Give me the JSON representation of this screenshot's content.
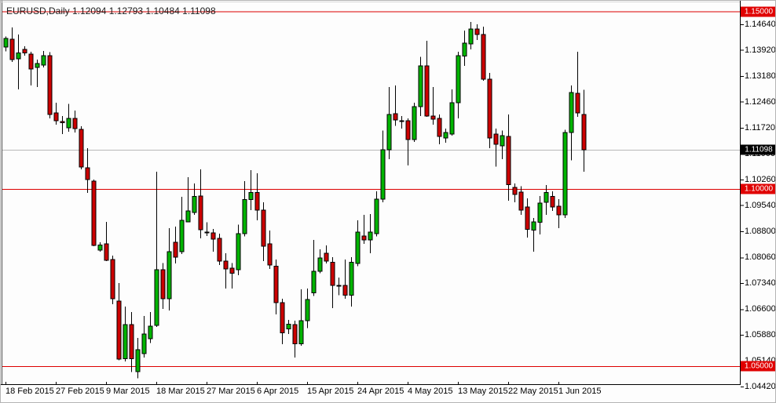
{
  "header": {
    "title": "EURUSD,Daily 1.12094 1.12793 1.10484 1.11098"
  },
  "colors": {
    "background": "#ffffff",
    "bull_body": "#00b400",
    "bear_body": "#cc0000",
    "candle_outline": "#000000",
    "wick": "#000000",
    "level_line_red": "#dd0000",
    "current_price_line": "#b8b8b8",
    "badge_red_bg": "#e00000",
    "badge_black_bg": "#000000",
    "badge_text": "#ffffff",
    "axis_line": "#000000",
    "axis_text": "#000000"
  },
  "chart_data": {
    "type": "candlestick",
    "title": "EURUSD,Daily 1.12094 1.12793 1.10484 1.11098",
    "symbol": "EURUSD",
    "timeframe": "Daily",
    "current_bar": {
      "open": "1.12094",
      "high": "1.12793",
      "low": "1.10484",
      "close": "1.11098"
    },
    "y_axis": {
      "top_value": 1.1464,
      "bottom_value": 1.0442,
      "ticks": [
        "1.14640",
        "1.13920",
        "1.13180",
        "1.12460",
        "1.11720",
        "1.11000",
        "1.10260",
        "1.09540",
        "1.08800",
        "1.08060",
        "1.07340",
        "1.06600",
        "1.05880",
        "1.05140",
        "1.04420"
      ]
    },
    "x_axis": {
      "labels": [
        {
          "text": "18 Feb 2015",
          "index": 0
        },
        {
          "text": "27 Feb 2015",
          "index": 8
        },
        {
          "text": "9 Mar 2015",
          "index": 16
        },
        {
          "text": "18 Mar 2015",
          "index": 24
        },
        {
          "text": "27 Mar 2015",
          "index": 32
        },
        {
          "text": "6 Apr 2015",
          "index": 40
        },
        {
          "text": "15 Apr 2015",
          "index": 48
        },
        {
          "text": "24 Apr 2015",
          "index": 56
        },
        {
          "text": "4 May 2015",
          "index": 64
        },
        {
          "text": "13 May 2015",
          "index": 72
        },
        {
          "text": "22 May 2015",
          "index": 80
        },
        {
          "text": "1 Jun 2015",
          "index": 88
        }
      ]
    },
    "levels": [
      {
        "value": 1.15,
        "label": "1.15000",
        "badge": "red"
      },
      {
        "value": 1.1,
        "label": "1.10000",
        "badge": "red"
      },
      {
        "value": 1.05,
        "label": "1.05000",
        "badge": "red"
      }
    ],
    "current_price": {
      "value": 1.11098,
      "label": "1.11098",
      "badge": "black"
    },
    "candles": [
      [
        1.14,
        1.143,
        1.1388,
        1.1424
      ],
      [
        1.1422,
        1.1455,
        1.1358,
        1.1365
      ],
      [
        1.1367,
        1.1435,
        1.128,
        1.1383
      ],
      [
        1.1393,
        1.1402,
        1.1375,
        1.1383
      ],
      [
        1.138,
        1.1387,
        1.1291,
        1.1338
      ],
      [
        1.1342,
        1.1365,
        1.1287,
        1.1353
      ],
      [
        1.1349,
        1.1389,
        1.1342,
        1.1376
      ],
      [
        1.1376,
        1.1385,
        1.1199,
        1.121
      ],
      [
        1.1214,
        1.1243,
        1.1181,
        1.1192
      ],
      [
        1.119,
        1.1205,
        1.1154,
        1.1187
      ],
      [
        1.1172,
        1.1239,
        1.1161,
        1.1199
      ],
      [
        1.1199,
        1.1221,
        1.1159,
        1.117
      ],
      [
        1.1168,
        1.1176,
        1.1055,
        1.1061
      ],
      [
        1.1059,
        1.1114,
        1.0988,
        1.1026
      ],
      [
        1.1022,
        1.1026,
        1.0838,
        1.084
      ],
      [
        1.0827,
        1.0849,
        1.0823,
        1.0841
      ],
      [
        1.0845,
        1.0907,
        1.0796,
        1.0798
      ],
      [
        1.08,
        1.0811,
        1.0674,
        1.069
      ],
      [
        1.0683,
        1.0734,
        1.0516,
        1.052
      ],
      [
        1.052,
        1.0668,
        1.0513,
        1.0617
      ],
      [
        1.0617,
        1.0652,
        1.0483,
        1.052
      ],
      [
        1.0484,
        1.0579,
        1.0465,
        1.0546
      ],
      [
        1.0535,
        1.0641,
        1.0524,
        1.059
      ],
      [
        1.0577,
        1.0652,
        1.0565,
        1.0612
      ],
      [
        1.0614,
        1.1048,
        1.061,
        1.0772
      ],
      [
        1.0772,
        1.079,
        1.0661,
        1.069
      ],
      [
        1.069,
        1.0889,
        1.0657,
        1.0823
      ],
      [
        1.0849,
        1.0893,
        1.0789,
        1.0807
      ],
      [
        1.0822,
        1.0977,
        1.0816,
        1.0911
      ],
      [
        1.0907,
        1.1033,
        1.0905,
        1.0938
      ],
      [
        1.0933,
        1.1015,
        1.0926,
        1.0978
      ],
      [
        1.098,
        1.1055,
        1.086,
        1.0884
      ],
      [
        1.0876,
        1.0905,
        1.0867,
        1.0878
      ],
      [
        1.0876,
        1.0887,
        1.0823,
        1.0858
      ],
      [
        1.086,
        1.0873,
        1.0785,
        1.0796
      ],
      [
        1.0796,
        1.0818,
        1.0719,
        1.0774
      ],
      [
        1.0776,
        1.079,
        1.0719,
        1.0762
      ],
      [
        1.0772,
        1.0899,
        1.0756,
        1.0873
      ],
      [
        1.0873,
        1.1022,
        1.0866,
        1.097
      ],
      [
        1.097,
        1.1052,
        1.094,
        1.099
      ],
      [
        1.0989,
        1.1044,
        1.0911,
        1.094
      ],
      [
        1.094,
        1.0962,
        1.0796,
        1.0838
      ],
      [
        1.0845,
        1.0882,
        1.0774,
        1.0785
      ],
      [
        1.0782,
        1.08,
        1.0645,
        1.0679
      ],
      [
        1.0679,
        1.069,
        1.0561,
        1.0594
      ],
      [
        1.0605,
        1.063,
        1.059,
        1.0618
      ],
      [
        1.0617,
        1.0628,
        1.0524,
        1.0563
      ],
      [
        1.0563,
        1.0716,
        1.0557,
        1.0628
      ],
      [
        1.0628,
        1.0719,
        1.0607,
        1.0688
      ],
      [
        1.0706,
        1.0856,
        1.0697,
        1.0767
      ],
      [
        1.0767,
        1.0829,
        1.0762,
        1.0805
      ],
      [
        1.0818,
        1.084,
        1.0789,
        1.0796
      ],
      [
        1.0793,
        1.0807,
        1.0663,
        1.0727
      ],
      [
        1.0727,
        1.0749,
        1.07,
        1.0727
      ],
      [
        1.0727,
        1.08,
        1.069,
        1.07
      ],
      [
        1.07,
        1.0807,
        1.0668,
        1.0793
      ],
      [
        1.0789,
        1.0911,
        1.0782,
        1.0878
      ],
      [
        1.0867,
        1.0926,
        1.0845,
        1.0856
      ],
      [
        1.0856,
        1.0929,
        1.0818,
        1.0878
      ],
      [
        1.0873,
        1.0993,
        1.0866,
        1.0971
      ],
      [
        1.0971,
        1.1164,
        1.0962,
        1.111
      ],
      [
        1.111,
        1.1287,
        1.1083,
        1.121
      ],
      [
        1.1212,
        1.1291,
        1.1177,
        1.1194
      ],
      [
        1.1192,
        1.1205,
        1.117,
        1.1192
      ],
      [
        1.1192,
        1.1199,
        1.1066,
        1.1139
      ],
      [
        1.1139,
        1.1243,
        1.1132,
        1.1232
      ],
      [
        1.1232,
        1.1372,
        1.1205,
        1.1347
      ],
      [
        1.1347,
        1.1418,
        1.1203,
        1.1205
      ],
      [
        1.1205,
        1.1287,
        1.1181,
        1.1196
      ],
      [
        1.1199,
        1.121,
        1.1126,
        1.1148
      ],
      [
        1.1143,
        1.117,
        1.113,
        1.1159
      ],
      [
        1.1154,
        1.128,
        1.115,
        1.1243
      ],
      [
        1.1243,
        1.1387,
        1.1199,
        1.1376
      ],
      [
        1.1374,
        1.1446,
        1.1347,
        1.1411
      ],
      [
        1.1409,
        1.1471,
        1.1393,
        1.1451
      ],
      [
        1.1451,
        1.1464,
        1.142,
        1.1435
      ],
      [
        1.1435,
        1.1457,
        1.1305,
        1.1309
      ],
      [
        1.1309,
        1.1327,
        1.1115,
        1.1143
      ],
      [
        1.1154,
        1.117,
        1.1062,
        1.1126
      ],
      [
        1.1121,
        1.1164,
        1.1083,
        1.115
      ],
      [
        1.1148,
        1.121,
        1.0966,
        1.1011
      ],
      [
        1.1004,
        1.1015,
        1.0962,
        1.0984
      ],
      [
        1.0991,
        1.1007,
        1.0926,
        1.094
      ],
      [
        1.0949,
        1.0973,
        1.0862,
        1.0885
      ],
      [
        1.0883,
        1.0918,
        1.0823,
        1.0907
      ],
      [
        1.0905,
        1.098,
        1.0871,
        1.096
      ],
      [
        1.0962,
        1.1011,
        1.0926,
        1.0989
      ],
      [
        1.0978,
        1.0993,
        1.0938,
        1.0949
      ],
      [
        1.0951,
        1.0971,
        1.0889,
        1.0926
      ],
      [
        1.0926,
        1.1166,
        1.0918,
        1.1159
      ],
      [
        1.1159,
        1.1291,
        1.108,
        1.1271
      ],
      [
        1.1269,
        1.1387,
        1.1203,
        1.1214
      ],
      [
        1.12094,
        1.12793,
        1.10484,
        1.11098
      ]
    ]
  }
}
